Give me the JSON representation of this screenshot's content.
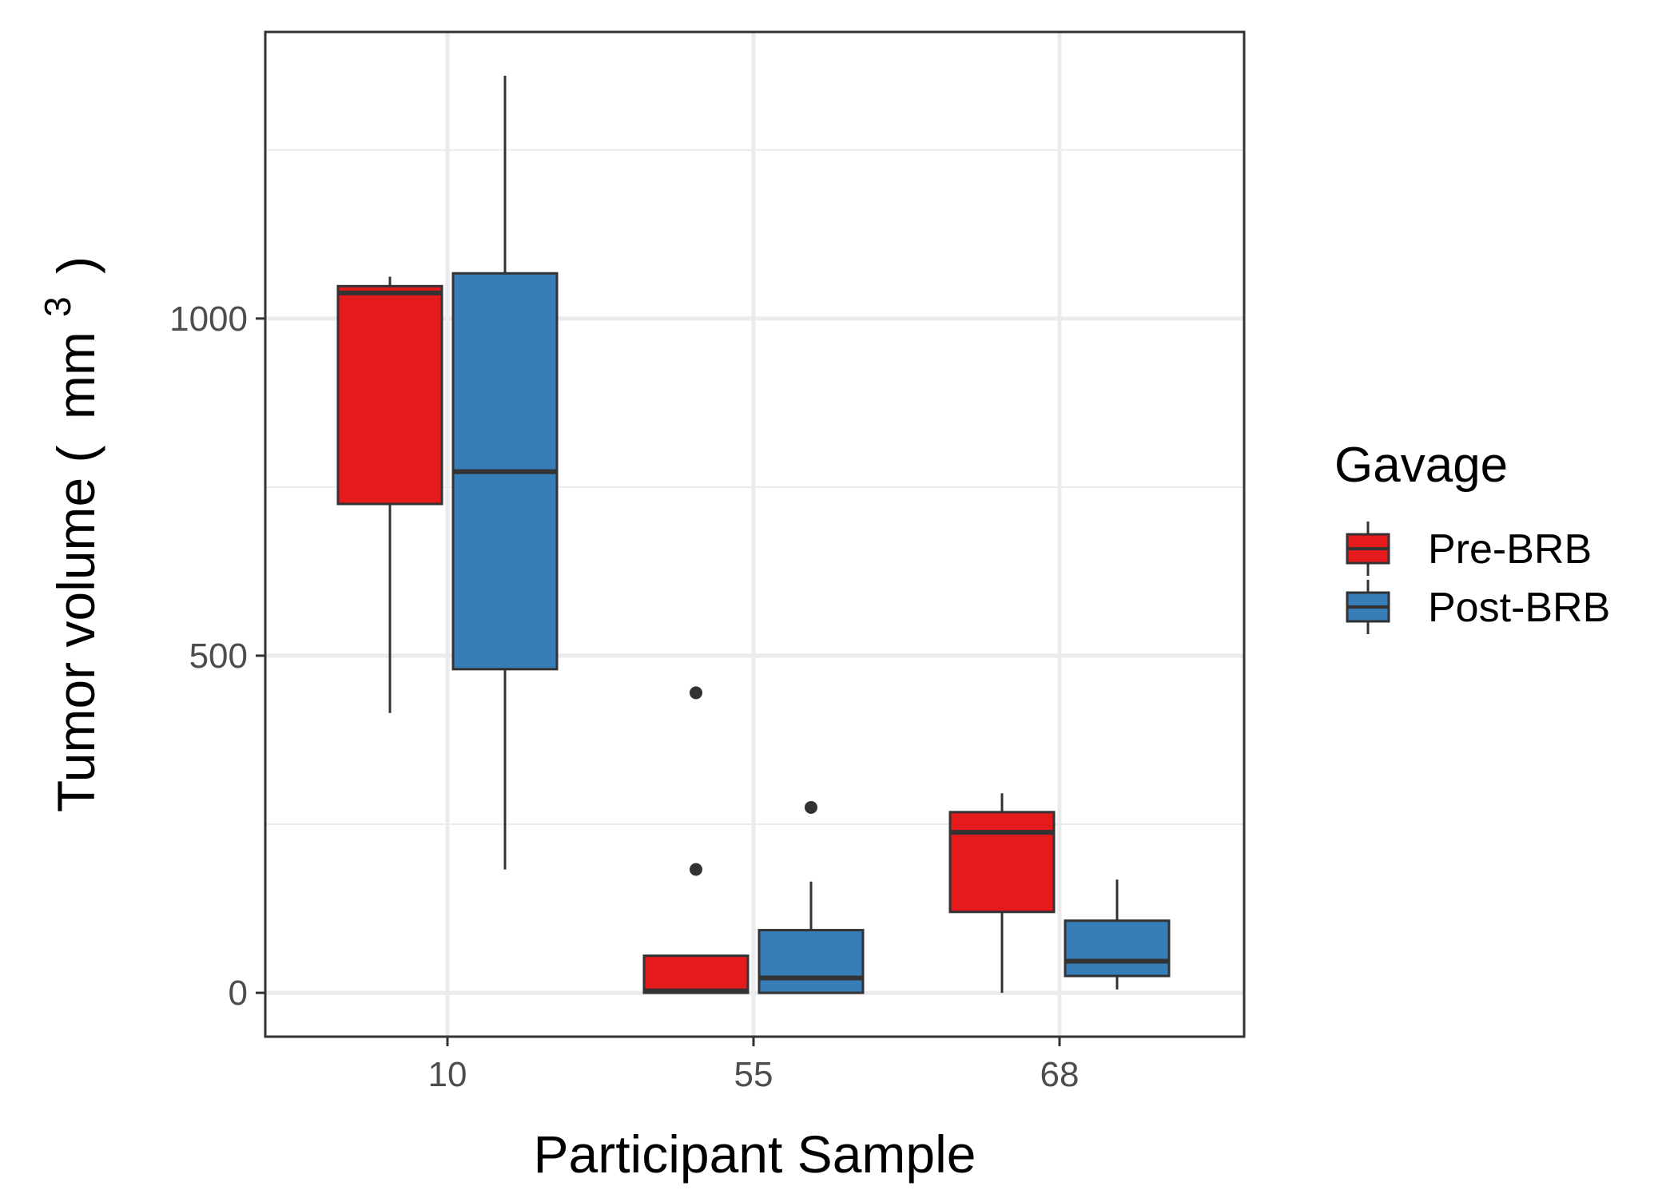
{
  "chart_data": {
    "type": "boxplot",
    "xlabel": "Participant Sample",
    "ylabel_main": "Tumor volume (",
    "ylabel_unit": "mm",
    "ylabel_sup": "3",
    "ylabel_close": ")",
    "categories": [
      "10",
      "55",
      "68"
    ],
    "ylim": [
      -65,
      1425
    ],
    "y_ticks": [
      0,
      500,
      1000
    ],
    "y_tick_labels": [
      "0",
      "500",
      "1000"
    ],
    "y_minor_ticks": [
      250,
      750,
      1250
    ],
    "grid": true,
    "legend": {
      "title": "Gavage",
      "placement": "right",
      "entries": [
        "Pre-BRB",
        "Post-BRB"
      ]
    },
    "colors": {
      "Pre-BRB": "#e41a1c",
      "Post-BRB": "#377eb8"
    },
    "series": [
      {
        "name": "Pre-BRB",
        "boxes": [
          {
            "category": "10",
            "whisker_low": 415,
            "q1": 725,
            "median": 1038,
            "q3": 1048,
            "whisker_high": 1062,
            "outliers": []
          },
          {
            "category": "55",
            "whisker_low": 0,
            "q1": 0,
            "median": 3,
            "q3": 55,
            "whisker_high": 55,
            "outliers": [
              445,
              183
            ]
          },
          {
            "category": "68",
            "whisker_low": 0,
            "q1": 120,
            "median": 238,
            "q3": 268,
            "whisker_high": 296,
            "outliers": []
          }
        ]
      },
      {
        "name": "Post-BRB",
        "boxes": [
          {
            "category": "10",
            "whisker_low": 183,
            "q1": 480,
            "median": 773,
            "q3": 1067,
            "whisker_high": 1360,
            "outliers": []
          },
          {
            "category": "55",
            "whisker_low": 0,
            "q1": 0,
            "median": 22,
            "q3": 93,
            "whisker_high": 165,
            "outliers": [
              275
            ]
          },
          {
            "category": "68",
            "whisker_low": 5,
            "q1": 25,
            "median": 47,
            "q3": 107,
            "whisker_high": 168,
            "outliers": []
          }
        ]
      }
    ]
  }
}
